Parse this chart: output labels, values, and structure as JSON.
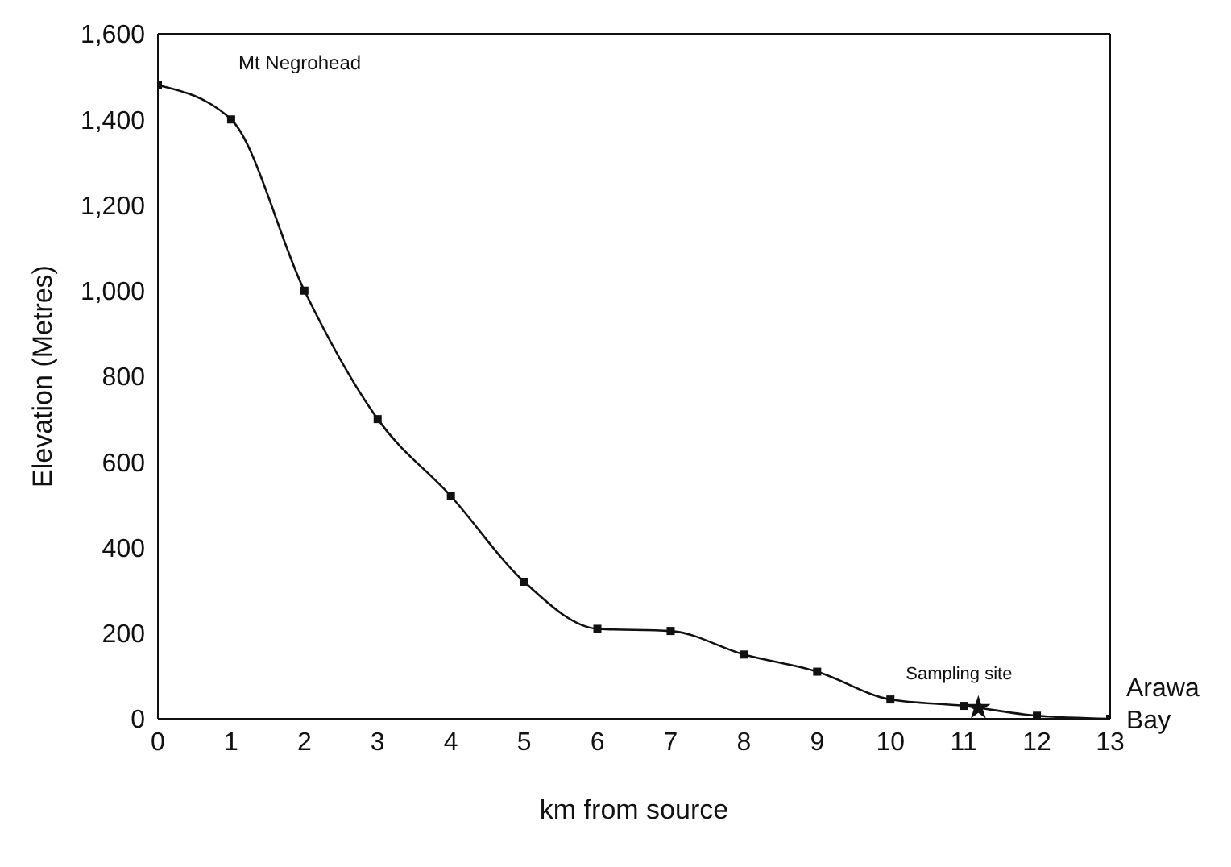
{
  "chart_data": {
    "type": "line",
    "xlabel": "km from source",
    "ylabel": "Elevation (Metres)",
    "x": [
      0,
      1,
      2,
      3,
      4,
      5,
      6,
      7,
      8,
      9,
      10,
      11,
      12,
      13
    ],
    "series": [
      {
        "color": "#111111",
        "marker": "square",
        "values": [
          1480,
          1400,
          1000,
          700,
          520,
          320,
          210,
          205,
          150,
          110,
          45,
          30,
          7,
          0
        ]
      },
      {
        "type": "scatter",
        "color": "#111111",
        "marker": "star",
        "x": [
          11.2
        ],
        "values": [
          25
        ]
      }
    ],
    "xlim": [
      0,
      13
    ],
    "xticks": [
      0,
      1,
      2,
      3,
      4,
      5,
      6,
      7,
      8,
      9,
      10,
      11,
      12,
      13
    ],
    "ylim": [
      0,
      1600
    ],
    "yticks": [
      0,
      200,
      400,
      600,
      800,
      {
        "value": 1000,
        "label": "1,000"
      },
      {
        "value": 1200,
        "label": "1,200"
      },
      {
        "value": 1400,
        "label": "1,400"
      },
      {
        "value": 1600,
        "label": "1,600"
      }
    ],
    "annotations": [
      "Mt Negrohead",
      {
        "text": "Sampling site",
        "x": 11.2,
        "y": 25
      },
      {
        "text": "Arawa Bay",
        "x": 13,
        "y": 0
      }
    ],
    "line_style": "solid"
  }
}
